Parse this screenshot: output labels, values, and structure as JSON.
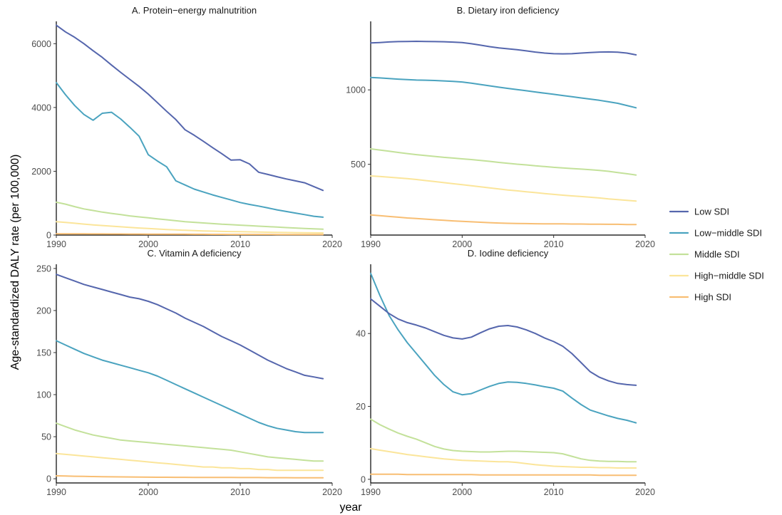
{
  "figure": {
    "ylabel": "Age-standardized DALY rate (per 100,000)",
    "xlabel": "year"
  },
  "legend": {
    "position": "right",
    "items": [
      {
        "name": "Low SDI",
        "color": "#5566ad"
      },
      {
        "name": "Low−middle SDI",
        "color": "#4aa3bf"
      },
      {
        "name": "Middle SDI",
        "color": "#c3e19a"
      },
      {
        "name": "High−middle SDI",
        "color": "#fbe59a"
      },
      {
        "name": "High SDI",
        "color": "#f8be73"
      }
    ]
  },
  "chart_data": [
    {
      "type": "line",
      "title": "A. Protein−energy malnutrition",
      "xlim": [
        1990,
        2020
      ],
      "ylim": [
        0,
        6700
      ],
      "xticks": [
        1990,
        2000,
        2010,
        2020
      ],
      "yticks": [
        0,
        2000,
        4000,
        6000
      ],
      "x": [
        1990,
        1991,
        1992,
        1993,
        1994,
        1995,
        1996,
        1997,
        1998,
        1999,
        2000,
        2001,
        2002,
        2003,
        2004,
        2005,
        2006,
        2007,
        2008,
        2009,
        2010,
        2011,
        2012,
        2013,
        2014,
        2015,
        2016,
        2017,
        2018,
        2019
      ],
      "series": [
        {
          "name": "Low SDI",
          "values": [
            6580,
            6370,
            6200,
            6000,
            5780,
            5570,
            5330,
            5100,
            4880,
            4660,
            4420,
            4150,
            3880,
            3620,
            3300,
            3130,
            2940,
            2740,
            2550,
            2350,
            2360,
            2230,
            1970,
            1900,
            1830,
            1760,
            1700,
            1640,
            1520,
            1400
          ]
        },
        {
          "name": "Low−middle SDI",
          "values": [
            4780,
            4400,
            4060,
            3780,
            3600,
            3820,
            3850,
            3640,
            3380,
            3100,
            2520,
            2320,
            2140,
            1700,
            1570,
            1440,
            1350,
            1260,
            1180,
            1100,
            1020,
            960,
            910,
            850,
            790,
            740,
            690,
            640,
            590,
            560
          ]
        },
        {
          "name": "Middle SDI",
          "values": [
            1030,
            970,
            890,
            820,
            770,
            720,
            680,
            640,
            600,
            570,
            540,
            510,
            480,
            450,
            420,
            400,
            380,
            360,
            340,
            325,
            310,
            295,
            280,
            265,
            250,
            235,
            220,
            205,
            195,
            185
          ]
        },
        {
          "name": "High−middle SDI",
          "values": [
            420,
            395,
            370,
            345,
            320,
            300,
            280,
            260,
            240,
            220,
            205,
            190,
            175,
            160,
            150,
            140,
            130,
            122,
            115,
            110,
            105,
            100,
            95,
            90,
            85,
            80,
            75,
            72,
            70,
            68
          ]
        },
        {
          "name": "High SDI",
          "values": [
            40,
            39,
            38,
            37,
            36,
            35,
            34,
            33,
            32,
            31,
            30,
            29,
            28,
            27,
            26,
            25,
            24,
            23,
            22,
            21,
            20,
            20,
            19,
            19,
            18,
            18,
            17,
            17,
            16,
            16
          ]
        }
      ]
    },
    {
      "type": "line",
      "title": "B. Dietary iron deficiency",
      "xlim": [
        1990,
        2020
      ],
      "ylim": [
        25,
        1460
      ],
      "xticks": [
        1990,
        2000,
        2010,
        2020
      ],
      "yticks": [
        500,
        1000
      ],
      "x": [
        1990,
        1991,
        1992,
        1993,
        1994,
        1995,
        1996,
        1997,
        1998,
        1999,
        2000,
        2001,
        2002,
        2003,
        2004,
        2005,
        2006,
        2007,
        2008,
        2009,
        2010,
        2011,
        2012,
        2013,
        2014,
        2015,
        2016,
        2017,
        2018,
        2019
      ],
      "series": [
        {
          "name": "Low SDI",
          "values": [
            1315,
            1318,
            1322,
            1324,
            1325,
            1326,
            1325,
            1324,
            1323,
            1321,
            1318,
            1310,
            1300,
            1290,
            1282,
            1276,
            1270,
            1262,
            1254,
            1247,
            1243,
            1242,
            1243,
            1247,
            1251,
            1254,
            1255,
            1253,
            1247,
            1235
          ]
        },
        {
          "name": "Low−middle SDI",
          "values": [
            1083,
            1080,
            1076,
            1072,
            1069,
            1066,
            1065,
            1063,
            1060,
            1057,
            1053,
            1045,
            1036,
            1027,
            1018,
            1010,
            1002,
            994,
            986,
            978,
            970,
            962,
            954,
            946,
            938,
            930,
            920,
            910,
            895,
            880
          ]
        },
        {
          "name": "Middle SDI",
          "values": [
            604,
            596,
            588,
            580,
            572,
            565,
            559,
            553,
            547,
            542,
            537,
            532,
            526,
            520,
            513,
            507,
            501,
            496,
            490,
            485,
            480,
            476,
            472,
            468,
            464,
            459,
            453,
            445,
            437,
            428
          ]
        },
        {
          "name": "High−middle SDI",
          "values": [
            422,
            418,
            414,
            409,
            404,
            398,
            391,
            384,
            377,
            370,
            363,
            356,
            349,
            342,
            335,
            328,
            322,
            316,
            310,
            304,
            298,
            293,
            288,
            284,
            279,
            274,
            268,
            263,
            258,
            253
          ]
        },
        {
          "name": "High SDI",
          "values": [
            160,
            155,
            150,
            145,
            140,
            136,
            132,
            128,
            124,
            120,
            117,
            114,
            111,
            108,
            106,
            104,
            103,
            102,
            101,
            100,
            100,
            100,
            99,
            99,
            98,
            98,
            97,
            97,
            96,
            96
          ]
        }
      ]
    },
    {
      "type": "line",
      "title": "C. Vitamin A deficiency",
      "xlim": [
        1990,
        2020
      ],
      "ylim": [
        -5,
        255
      ],
      "xticks": [
        1990,
        2000,
        2010,
        2020
      ],
      "yticks": [
        0,
        50,
        100,
        150,
        200,
        250
      ],
      "x": [
        1990,
        1991,
        1992,
        1993,
        1994,
        1995,
        1996,
        1997,
        1998,
        1999,
        2000,
        2001,
        2002,
        2003,
        2004,
        2005,
        2006,
        2007,
        2008,
        2009,
        2010,
        2011,
        2012,
        2013,
        2014,
        2015,
        2016,
        2017,
        2018,
        2019
      ],
      "series": [
        {
          "name": "Low SDI",
          "values": [
            243,
            239,
            235,
            231,
            228,
            225,
            222,
            219,
            216,
            214,
            211,
            207,
            202,
            197,
            191,
            186,
            181,
            175,
            169,
            164,
            159,
            153,
            147,
            141,
            136,
            131,
            127,
            123,
            121,
            119
          ]
        },
        {
          "name": "Low−middle SDI",
          "values": [
            164,
            159,
            154,
            149,
            145,
            141,
            138,
            135,
            132,
            129,
            126,
            122,
            117,
            112,
            107,
            102,
            97,
            92,
            87,
            82,
            77,
            72,
            67,
            63,
            60,
            58,
            56,
            55,
            55,
            55
          ]
        },
        {
          "name": "Middle SDI",
          "values": [
            66,
            62,
            58,
            55,
            52,
            50,
            48,
            46,
            45,
            44,
            43,
            42,
            41,
            40,
            39,
            38,
            37,
            36,
            35,
            34,
            32,
            30,
            28,
            26,
            25,
            24,
            23,
            22,
            21,
            21
          ]
        },
        {
          "name": "High−middle SDI",
          "values": [
            30,
            29,
            28,
            27,
            26,
            25,
            24,
            23,
            22,
            21,
            20,
            19,
            18,
            17,
            16,
            15,
            14,
            14,
            13,
            13,
            12,
            12,
            11,
            11,
            10,
            10,
            10,
            10,
            10,
            10
          ]
        },
        {
          "name": "High SDI",
          "values": [
            3.5,
            3.2,
            3.0,
            2.8,
            2.6,
            2.4,
            2.3,
            2.2,
            2.1,
            2.0,
            1.9,
            1.8,
            1.8,
            1.7,
            1.7,
            1.6,
            1.6,
            1.5,
            1.5,
            1.5,
            1.4,
            1.4,
            1.4,
            1.3,
            1.3,
            1.3,
            1.2,
            1.2,
            1.2,
            1.2
          ]
        }
      ]
    },
    {
      "type": "line",
      "title": "D. Iodine deficiency",
      "xlim": [
        1990,
        2020
      ],
      "ylim": [
        -1,
        59
      ],
      "xticks": [
        1990,
        2000,
        2010,
        2020
      ],
      "yticks": [
        0,
        20,
        40
      ],
      "x": [
        1990,
        1991,
        1992,
        1993,
        1994,
        1995,
        1996,
        1997,
        1998,
        1999,
        2000,
        2001,
        2002,
        2003,
        2004,
        2005,
        2006,
        2007,
        2008,
        2009,
        2010,
        2011,
        2012,
        2013,
        2014,
        2015,
        2016,
        2017,
        2018,
        2019
      ],
      "series": [
        {
          "name": "Low SDI",
          "values": [
            49.5,
            47.5,
            45.5,
            44,
            43,
            42.3,
            41.5,
            40.5,
            39.5,
            38.8,
            38.5,
            39,
            40.2,
            41.3,
            42,
            42.2,
            41.8,
            41,
            40,
            38.8,
            37.8,
            36.5,
            34.5,
            32,
            29.5,
            28,
            27,
            26.3,
            26,
            25.8
          ]
        },
        {
          "name": "Low−middle SDI",
          "values": [
            56.5,
            50.5,
            45,
            41,
            37.5,
            34.5,
            31.5,
            28.5,
            26,
            24,
            23.2,
            23.5,
            24.5,
            25.5,
            26.3,
            26.7,
            26.6,
            26.3,
            25.9,
            25.4,
            25,
            24.2,
            22.3,
            20.5,
            19,
            18.2,
            17.4,
            16.7,
            16.2,
            15.5
          ]
        },
        {
          "name": "Middle SDI",
          "values": [
            16.5,
            15,
            13.8,
            12.7,
            11.8,
            11,
            10,
            9,
            8.3,
            7.9,
            7.7,
            7.6,
            7.5,
            7.5,
            7.6,
            7.7,
            7.7,
            7.6,
            7.5,
            7.4,
            7.3,
            7,
            6.3,
            5.6,
            5.2,
            5,
            4.9,
            4.9,
            4.8,
            4.8
          ]
        },
        {
          "name": "High−middle SDI",
          "values": [
            8.4,
            8,
            7.6,
            7.2,
            6.8,
            6.5,
            6.2,
            5.9,
            5.6,
            5.4,
            5.2,
            5.1,
            5,
            4.9,
            4.8,
            4.8,
            4.6,
            4.3,
            4,
            3.8,
            3.6,
            3.5,
            3.4,
            3.3,
            3.3,
            3.2,
            3.2,
            3.1,
            3.1,
            3.1
          ]
        },
        {
          "name": "High SDI",
          "values": [
            1.4,
            1.4,
            1.4,
            1.4,
            1.3,
            1.3,
            1.3,
            1.3,
            1.3,
            1.3,
            1.3,
            1.3,
            1.2,
            1.2,
            1.2,
            1.2,
            1.2,
            1.2,
            1.2,
            1.2,
            1.2,
            1.2,
            1.2,
            1.2,
            1.2,
            1.1,
            1.1,
            1.1,
            1.1,
            1.1
          ]
        }
      ]
    }
  ]
}
